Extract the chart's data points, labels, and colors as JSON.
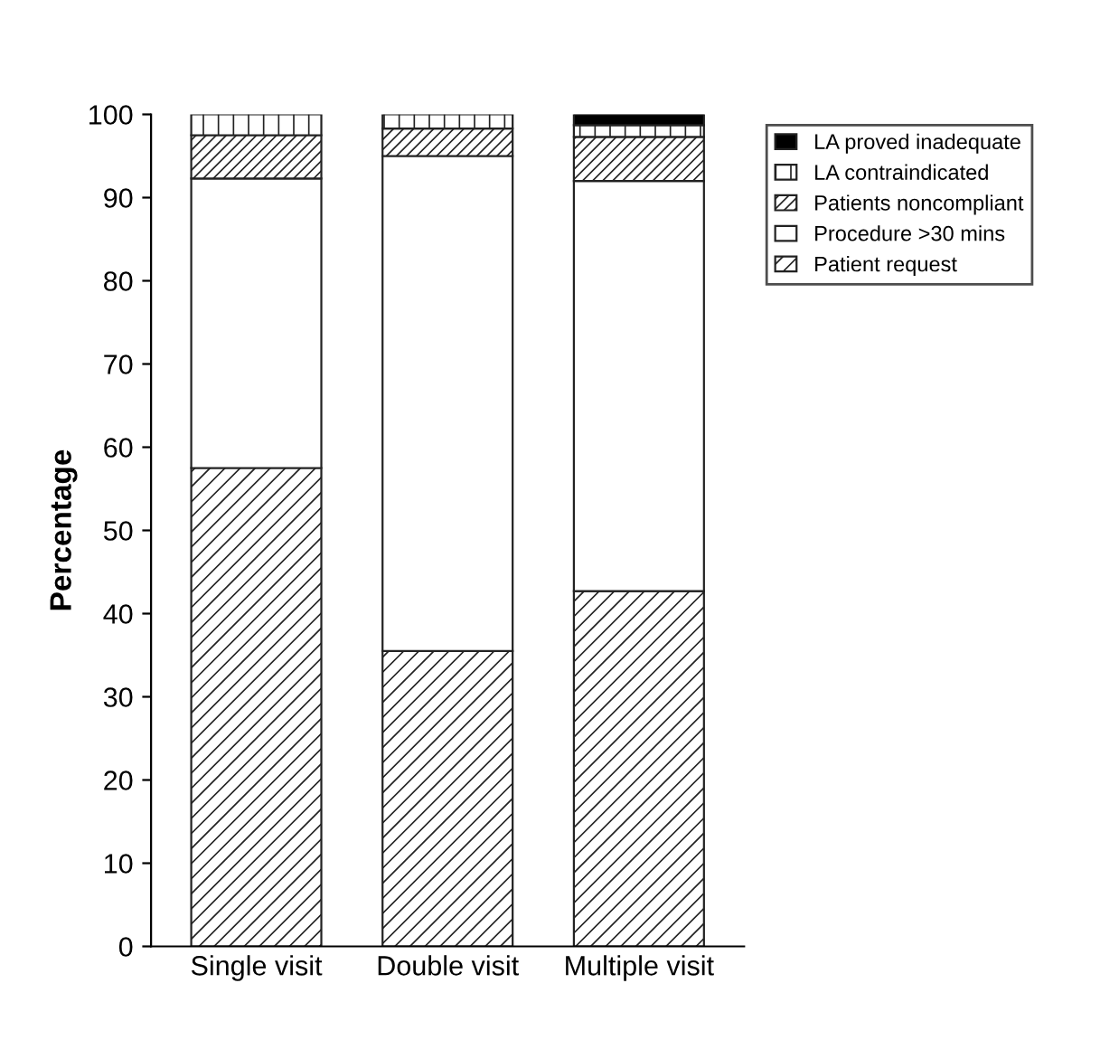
{
  "chart_data": {
    "type": "bar",
    "stacked": true,
    "ylabel": "Percentage",
    "categories": [
      "Single visit",
      "Double visit",
      "Multiple visit"
    ],
    "series": [
      {
        "name": "Patient request",
        "color": "#222222",
        "values": [
          57.5,
          35.5,
          42.7
        ]
      },
      {
        "name": "Procedure >30 mins",
        "color": "#ffffff",
        "values": [
          34.8,
          59.5,
          49.3
        ]
      },
      {
        "name": "Patients noncompliant",
        "color": "#222222",
        "values": [
          5.2,
          3.3,
          5.3
        ]
      },
      {
        "name": "LA contraindicated",
        "color": "#222222",
        "values": [
          2.5,
          1.7,
          1.4
        ]
      },
      {
        "name": "LA proved inadequate",
        "color": "#000000",
        "values": [
          null,
          null,
          1.3
        ]
      }
    ],
    "ylim": [
      0,
      100
    ],
    "yticks": [
      0,
      10,
      20,
      30,
      40,
      50,
      60,
      70,
      80,
      90,
      100
    ],
    "grid": false,
    "legend": "top right"
  }
}
